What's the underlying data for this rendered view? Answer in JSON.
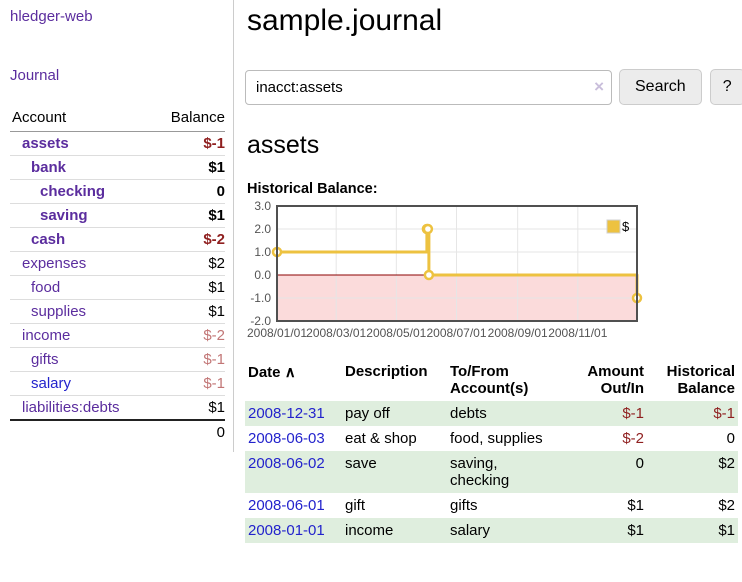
{
  "sidebar": {
    "app_title": "hledger-web",
    "journal_link": "Journal",
    "accounts_header": {
      "account": "Account",
      "balance": "Balance"
    },
    "accounts": [
      {
        "name": "assets",
        "indent": 1,
        "balance": "$-1",
        "bold": true,
        "negative": true
      },
      {
        "name": "bank",
        "indent": 2,
        "balance": "$1",
        "bold": true,
        "negative": false
      },
      {
        "name": "checking",
        "indent": 3,
        "balance": "0",
        "bold": true,
        "negative": false
      },
      {
        "name": "saving",
        "indent": 3,
        "balance": "$1",
        "bold": true,
        "negative": false
      },
      {
        "name": "cash",
        "indent": 2,
        "balance": "$-2",
        "bold": true,
        "negative": true
      },
      {
        "name": "expenses",
        "indent": 1,
        "balance": "$2",
        "bold": false,
        "negative": false
      },
      {
        "name": "food",
        "indent": 2,
        "balance": "$1",
        "bold": false,
        "negative": false
      },
      {
        "name": "supplies",
        "indent": 2,
        "balance": "$1",
        "bold": false,
        "negative": false
      },
      {
        "name": "income",
        "indent": 1,
        "balance": "$-2",
        "bold": false,
        "negative": true
      },
      {
        "name": "gifts",
        "indent": 2,
        "balance": "$-1",
        "bold": false,
        "negative": true
      },
      {
        "name": "salary",
        "indent": 2,
        "balance": "$-1",
        "bold": false,
        "negative": true,
        "unvisited": true
      },
      {
        "name": "liabilities:debts",
        "indent": 1,
        "balance": "$1",
        "bold": false,
        "negative": false
      }
    ],
    "total": "0"
  },
  "header": {
    "title": "sample.journal",
    "search": {
      "value": "inacct:assets",
      "clear_icon": "×",
      "button": "Search",
      "help": "?"
    }
  },
  "main": {
    "account_heading": "assets",
    "chart_label": "Historical Balance:"
  },
  "chart_data": {
    "type": "line",
    "step": true,
    "title": "Historical Balance",
    "series": [
      {
        "name": "$",
        "color": "#edc240",
        "points": [
          [
            "2008-01-01",
            1
          ],
          [
            "2008-06-01",
            2
          ],
          [
            "2008-06-02",
            2
          ],
          [
            "2008-06-03",
            0
          ],
          [
            "2008-12-31",
            -1
          ]
        ]
      }
    ],
    "x_ticks": [
      "2008/01/01",
      "2008/03/01",
      "2008/05/01",
      "2008/07/01",
      "2008/09/01",
      "2008/11/01"
    ],
    "y_ticks": [
      -2,
      -1,
      0,
      1,
      2,
      3
    ],
    "ylim": [
      -2,
      3
    ],
    "x_epoch": "2008-01-01",
    "xlim_days": [
      0,
      365
    ],
    "grid": true,
    "legend": "$",
    "legend_position": "top-right",
    "negative_region_color": "#fbdbdb",
    "zero_line_color": "#8b0000",
    "grid_color": "#e6e6e6",
    "border_color": "#505050",
    "tick_color": "#545454"
  },
  "register": {
    "columns": [
      "Date",
      "Description",
      "To/From Account(s)",
      "Amount Out/In",
      "Historical Balance"
    ],
    "sort_icon": "∧",
    "rows": [
      {
        "date": "2008-12-31",
        "description": "pay off",
        "accounts": "debts",
        "amount": "$-1",
        "balance": "$-1",
        "amount_negative": true,
        "balance_negative": true
      },
      {
        "date": "2008-06-03",
        "description": "eat & shop",
        "accounts": "food, supplies",
        "amount": "$-2",
        "balance": "0",
        "amount_negative": true,
        "balance_negative": false
      },
      {
        "date": "2008-06-02",
        "description": "save",
        "accounts": "saving, checking",
        "amount": "0",
        "balance": "$2",
        "amount_negative": false,
        "balance_negative": false
      },
      {
        "date": "2008-06-01",
        "description": "gift",
        "accounts": "gifts",
        "amount": "$1",
        "balance": "$2",
        "amount_negative": false,
        "balance_negative": false
      },
      {
        "date": "2008-01-01",
        "description": "income",
        "accounts": "salary",
        "amount": "$1",
        "balance": "$1",
        "amount_negative": false,
        "balance_negative": false
      }
    ]
  }
}
